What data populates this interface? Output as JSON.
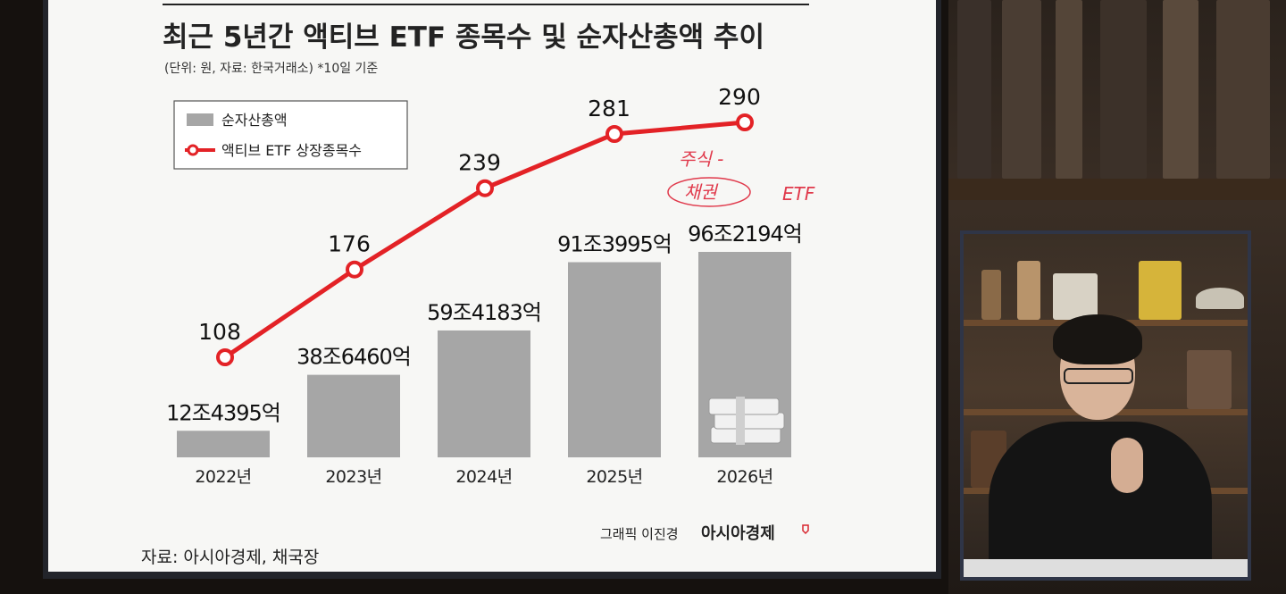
{
  "chart_data": {
    "type": "bar+line",
    "title": "최근 5년간 액티브 ETF 종목수 및 순자산총액 추이",
    "subtitle": "(단위: 원, 자료: 한국거래소)  *10일 기준",
    "categories": [
      "2022년",
      "2023년",
      "2024년",
      "2025년",
      "2026년"
    ],
    "series": [
      {
        "name": "순자산총액",
        "kind": "bar",
        "color": "#a6a6a6",
        "values": [
          12.4395,
          38.646,
          59.4183,
          91.3995,
          96.2194
        ],
        "labels": [
          "12조4395억",
          "38조6460억",
          "59조4183억",
          "91조3995억",
          "96조2194억"
        ]
      },
      {
        "name": "액티브 ETF 상장종목수",
        "kind": "line",
        "color": "#e32226",
        "values": [
          108,
          176,
          239,
          281,
          290
        ],
        "labels": [
          "108",
          "176",
          "239",
          "281",
          "290"
        ]
      }
    ],
    "legend": "top-left",
    "credit": "그래픽 이진경",
    "brand": "아시아경제",
    "source": "자료: 아시아경제, 채국장",
    "annotation": {
      "text_line1": "주식 -",
      "text_line2": "채권",
      "text_suffix": "ETF",
      "color": "#e0394b"
    }
  }
}
